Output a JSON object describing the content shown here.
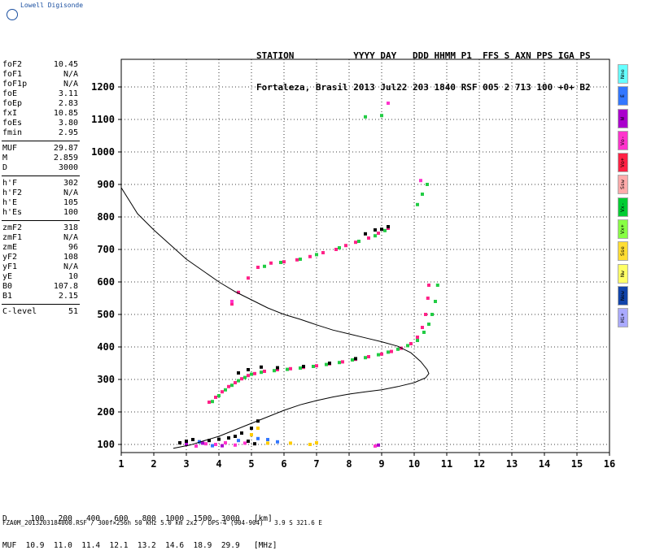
{
  "brand": "Lowell Digisonde",
  "header": {
    "line1": "STATION           YYYY DAY   DDD HHMM P1  FFS S AXN PPS IGA PS",
    "line2": "Fortaleza, Brasil 2013 Jul22 203 1840 RSF 005 2 713 100 +0+ B2"
  },
  "params": [
    [
      [
        "foF2",
        "10.45"
      ],
      [
        "foF1",
        "N/A"
      ],
      [
        "foF1p",
        "N/A"
      ],
      [
        "foE",
        "3.11"
      ],
      [
        "foEp",
        "2.83"
      ],
      [
        "fxI",
        "10.85"
      ],
      [
        "foEs",
        "3.80"
      ],
      [
        "fmin",
        "2.95"
      ]
    ],
    [
      [
        "MUF",
        "29.87"
      ],
      [
        "M",
        "2.859"
      ],
      [
        "D",
        "3000"
      ]
    ],
    [
      [
        "h'F",
        "302"
      ],
      [
        "h'F2",
        "N/A"
      ],
      [
        "h'E",
        "105"
      ],
      [
        "h'Es",
        "100"
      ]
    ],
    [
      [
        "zmF2",
        "318"
      ],
      [
        "zmF1",
        "N/A"
      ],
      [
        "zmE",
        "96"
      ],
      [
        "yF2",
        "108"
      ],
      [
        "yF1",
        "N/A"
      ],
      [
        "yE",
        "10"
      ],
      [
        "B0",
        "107.8"
      ],
      [
        "B1",
        "2.15"
      ]
    ],
    [
      [
        "C-level",
        "51"
      ]
    ]
  ],
  "legend": [
    {
      "label": "Nne",
      "color": "#66ffff"
    },
    {
      "label": "E",
      "color": "#3377ff"
    },
    {
      "label": "W",
      "color": "#aa00cc"
    },
    {
      "label": "Vo-",
      "color": "#ff33cc"
    },
    {
      "label": "Vo+",
      "color": "#ff2244"
    },
    {
      "label": "Ssw",
      "color": "#ffaaaa"
    },
    {
      "label": "Vx-",
      "color": "#00cc33"
    },
    {
      "label": "Vx+",
      "color": "#88ff44"
    },
    {
      "label": "Sse",
      "color": "#ffdd33"
    },
    {
      "label": "Nw",
      "color": "#ffff66"
    },
    {
      "label": "New",
      "color": "#1144aa"
    },
    {
      "label": "Hi+",
      "color": "#aaaaff"
    }
  ],
  "bottom": {
    "line1": "D     100   200   400   600   800  1000  1500  3000   [km]",
    "line2": "MUF  10.9  11.0  11.4  12.1  13.2  14.6  18.9  29.9   [MHz]"
  },
  "footer": "FZA0M_2013203184000.RSF / 300f×256h 50 kHz 5.0 km 2x2 / DPS-4 (904-904)   3.9 S 321.6 E",
  "chart_data": {
    "type": "scatter",
    "x_ticks": [
      "1",
      "2",
      "3",
      "4",
      "5",
      "6",
      "7",
      "8",
      "9",
      "10",
      "11",
      "12",
      "13",
      "14",
      "15",
      "16"
    ],
    "y_ticks": [
      "100",
      "200",
      "300",
      "400",
      "500",
      "600",
      "700",
      "800",
      "900",
      "1000",
      "1100",
      "1200"
    ],
    "xlim": [
      1,
      16
    ],
    "ylim": [
      75,
      1285
    ],
    "grid": true,
    "profile": [
      [
        1.0,
        890
      ],
      [
        1.5,
        810
      ],
      [
        2.0,
        760
      ],
      [
        2.5,
        715
      ],
      [
        3.0,
        670
      ],
      [
        3.5,
        635
      ],
      [
        4.0,
        600
      ],
      [
        4.5,
        570
      ],
      [
        5.0,
        545
      ],
      [
        5.5,
        520
      ],
      [
        6.0,
        500
      ],
      [
        6.5,
        485
      ],
      [
        7.0,
        468
      ],
      [
        7.5,
        452
      ],
      [
        8.0,
        440
      ],
      [
        8.5,
        428
      ],
      [
        9.0,
        416
      ],
      [
        9.5,
        402
      ],
      [
        9.9,
        382
      ],
      [
        10.2,
        355
      ],
      [
        10.4,
        330
      ],
      [
        10.45,
        318
      ],
      [
        10.35,
        305
      ],
      [
        10.0,
        290
      ],
      [
        9.5,
        278
      ],
      [
        9.0,
        268
      ],
      [
        8.5,
        262
      ],
      [
        8.0,
        255
      ],
      [
        7.5,
        246
      ],
      [
        7.0,
        235
      ],
      [
        6.5,
        222
      ],
      [
        6.0,
        205
      ],
      [
        5.5,
        185
      ],
      [
        5.0,
        165
      ],
      [
        4.5,
        145
      ],
      [
        4.0,
        125
      ],
      [
        3.5,
        110
      ],
      [
        3.11,
        98
      ],
      [
        2.6,
        88
      ]
    ],
    "series": [
      {
        "color": "#ff2288",
        "points": [
          [
            3.7,
            230
          ],
          [
            3.9,
            245
          ],
          [
            4.1,
            262
          ],
          [
            4.3,
            278
          ],
          [
            4.5,
            290
          ],
          [
            4.7,
            302
          ],
          [
            4.9,
            312
          ],
          [
            5.1,
            318
          ],
          [
            5.4,
            325
          ],
          [
            5.8,
            330
          ],
          [
            6.2,
            333
          ],
          [
            6.6,
            337
          ],
          [
            7.0,
            342
          ],
          [
            7.4,
            348
          ],
          [
            7.8,
            354
          ],
          [
            8.2,
            362
          ],
          [
            8.6,
            370
          ],
          [
            9.0,
            378
          ],
          [
            9.3,
            386
          ],
          [
            9.6,
            396
          ],
          [
            9.9,
            410
          ],
          [
            10.1,
            430
          ],
          [
            10.25,
            460
          ],
          [
            10.35,
            500
          ],
          [
            10.42,
            550
          ],
          [
            10.45,
            590
          ],
          [
            4.6,
            568
          ],
          [
            4.9,
            612
          ],
          [
            5.2,
            645
          ],
          [
            5.6,
            658
          ],
          [
            6.0,
            662
          ],
          [
            6.4,
            668
          ],
          [
            6.8,
            678
          ],
          [
            7.2,
            690
          ],
          [
            7.6,
            700
          ],
          [
            7.9,
            712
          ],
          [
            8.2,
            722
          ],
          [
            8.6,
            735
          ],
          [
            8.9,
            750
          ],
          [
            9.2,
            765
          ],
          [
            4.4,
            532
          ]
        ]
      },
      {
        "color": "#22cc44",
        "points": [
          [
            3.8,
            232
          ],
          [
            4.0,
            250
          ],
          [
            4.2,
            268
          ],
          [
            4.4,
            282
          ],
          [
            4.6,
            296
          ],
          [
            4.8,
            306
          ],
          [
            5.0,
            316
          ],
          [
            5.3,
            322
          ],
          [
            5.7,
            327
          ],
          [
            6.1,
            331
          ],
          [
            6.5,
            335
          ],
          [
            6.9,
            340
          ],
          [
            7.3,
            346
          ],
          [
            7.7,
            352
          ],
          [
            8.1,
            360
          ],
          [
            8.5,
            367
          ],
          [
            8.9,
            376
          ],
          [
            9.2,
            384
          ],
          [
            9.5,
            393
          ],
          [
            9.8,
            404
          ],
          [
            10.1,
            420
          ],
          [
            10.3,
            445
          ],
          [
            10.45,
            470
          ],
          [
            10.55,
            500
          ],
          [
            10.65,
            540
          ],
          [
            10.72,
            590
          ],
          [
            5.4,
            648
          ],
          [
            5.9,
            660
          ],
          [
            6.5,
            670
          ],
          [
            7.0,
            684
          ],
          [
            7.7,
            705
          ],
          [
            8.3,
            725
          ],
          [
            8.8,
            742
          ],
          [
            9.1,
            758
          ],
          [
            10.1,
            838
          ],
          [
            10.25,
            870
          ],
          [
            10.4,
            900
          ],
          [
            8.5,
            1108
          ],
          [
            9.0,
            1112
          ]
        ]
      },
      {
        "color": "#000000",
        "points": [
          [
            4.6,
            320
          ],
          [
            4.9,
            330
          ],
          [
            5.3,
            338
          ],
          [
            5.8,
            336
          ],
          [
            6.6,
            340
          ],
          [
            7.4,
            350
          ],
          [
            8.2,
            364
          ],
          [
            9.2,
            770
          ],
          [
            9.0,
            762
          ],
          [
            8.8,
            760
          ],
          [
            8.5,
            748
          ],
          [
            2.8,
            105
          ],
          [
            3.0,
            110
          ],
          [
            3.2,
            115
          ],
          [
            3.4,
            108
          ],
          [
            3.7,
            112
          ],
          [
            4.0,
            116
          ],
          [
            4.3,
            120
          ],
          [
            4.5,
            125
          ],
          [
            4.7,
            135
          ],
          [
            4.9,
            110
          ],
          [
            5.1,
            102
          ],
          [
            5.0,
            150
          ],
          [
            5.2,
            172
          ]
        ]
      },
      {
        "color": "#ff33cc",
        "points": [
          [
            3.3,
            95
          ],
          [
            3.6,
            102
          ],
          [
            3.9,
            100
          ],
          [
            4.2,
            105
          ],
          [
            4.5,
            98
          ],
          [
            4.8,
            104
          ],
          [
            9.2,
            1150
          ],
          [
            10.2,
            912
          ],
          [
            8.8,
            95
          ],
          [
            4.4,
            540
          ]
        ]
      },
      {
        "color": "#3377ff",
        "points": [
          [
            3.4,
            108
          ],
          [
            3.8,
            96
          ],
          [
            4.6,
            112
          ],
          [
            5.2,
            118
          ],
          [
            5.5,
            115
          ],
          [
            5.8,
            108
          ]
        ]
      },
      {
        "color": "#ffcc00",
        "points": [
          [
            5.2,
            150
          ],
          [
            5.0,
            130
          ],
          [
            5.5,
            104
          ],
          [
            6.2,
            104
          ],
          [
            7.0,
            105
          ],
          [
            6.8,
            100
          ]
        ]
      },
      {
        "color": "#aa00cc",
        "points": [
          [
            3.0,
            100
          ],
          [
            3.5,
            104
          ],
          [
            4.1,
            96
          ],
          [
            8.9,
            98
          ]
        ]
      }
    ]
  }
}
